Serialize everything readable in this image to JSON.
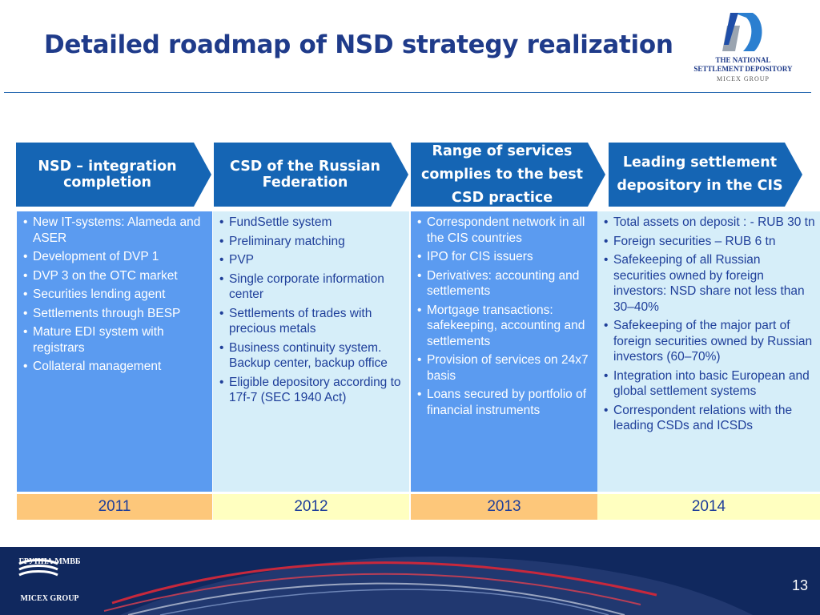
{
  "title": "Detailed roadmap of NSD strategy realization",
  "logo": {
    "line1": "THE NATIONAL",
    "line2": "SETTLEMENT DEPOSITORY",
    "line3": "MICEX GROUP"
  },
  "colors": {
    "title": "#1f3b8a",
    "arrow": "#1565b4",
    "column_dark": "#5b9bf0",
    "column_light": "#d6eef9",
    "year_orange": "#fdc77a",
    "year_yellow": "#ffffc0",
    "footer": "#10285e"
  },
  "stages": [
    {
      "header": "NSD – integration completion",
      "items": [
        "New IT-systems: Alameda and ASER",
        "Development of DVP 1",
        "DVP 3 on the OTC market",
        "Securities lending agent",
        "Settlements through BESP",
        "Mature EDI system with registrars",
        "Collateral management"
      ],
      "year": "2011"
    },
    {
      "header": "CSD of the Russian Federation",
      "items": [
        "FundSettle system",
        "Preliminary matching",
        "PVP",
        "Single corporate information center",
        "Settlements of trades with precious metals",
        "Business continuity system. Backup center, backup office",
        "Eligible depository according to 17f-7 (SEC 1940 Act)"
      ],
      "year": "2012"
    },
    {
      "header": "Range of services complies to the best CSD practice",
      "items": [
        "Correspondent network in all the CIS countries",
        "IPO for CIS issuers",
        "Derivatives: accounting and settlements",
        "Mortgage transactions: safekeeping, accounting and settlements",
        "Provision of services on 24x7 basis",
        "Loans secured by portfolio of financial instruments"
      ],
      "year": "2013"
    },
    {
      "header": "Leading settlement depository in the CIS",
      "items": [
        "Total assets on deposit : - RUB 30 tn",
        "Foreign securities – RUB 6 tn",
        "Safekeeping of all Russian securities owned by foreign investors: NSD share not less than 30–40%",
        "Safekeeping of the major part of foreign securities owned by Russian investors (60–70%)",
        "Integration into basic European and global settlement systems",
        "Correspondent relations with the leading CSDs and ICSDs"
      ],
      "year": "2014"
    }
  ],
  "footer": {
    "logo_ru": "ГРУППА ММВБ",
    "logo_en": "MICEX GROUP",
    "page_number": "13"
  }
}
